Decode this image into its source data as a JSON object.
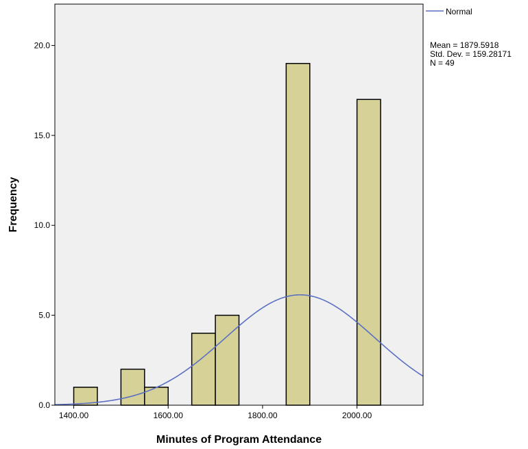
{
  "chart_data": {
    "type": "bar",
    "subtype": "histogram",
    "xlabel": "Minutes of Program Attendance",
    "ylabel": "Frequency",
    "xlim": [
      1360,
      2140
    ],
    "ylim": [
      0,
      22.3
    ],
    "x_ticks": [
      1400,
      1600,
      1800,
      2000
    ],
    "x_tick_labels": [
      "1400.00",
      "1600.00",
      "1800.00",
      "2000.00"
    ],
    "y_ticks": [
      0,
      5,
      10,
      15,
      20
    ],
    "y_tick_labels": [
      "0.0",
      "5.0",
      "10.0",
      "15.0",
      "20.0"
    ],
    "bins": [
      {
        "start": 1400,
        "end": 1450,
        "count": 1
      },
      {
        "start": 1500,
        "end": 1550,
        "count": 2
      },
      {
        "start": 1550,
        "end": 1600,
        "count": 1
      },
      {
        "start": 1650,
        "end": 1700,
        "count": 4
      },
      {
        "start": 1700,
        "end": 1750,
        "count": 5
      },
      {
        "start": 1850,
        "end": 1900,
        "count": 19
      },
      {
        "start": 2000,
        "end": 2050,
        "count": 17
      }
    ],
    "normal_curve": {
      "name": "Normal",
      "mean": 1879.5918,
      "std": 159.28171,
      "n": 49,
      "bin_width": 50
    },
    "stats_lines": [
      "Mean = 1879.5918",
      "Std. Dev. = 159.28171",
      "N = 49"
    ],
    "legend_label": "Normal",
    "legend_position": "top-right",
    "grid": false,
    "colors": {
      "plot_background": "#f0f0f0",
      "bar_fill": "#d6d196",
      "bar_stroke": "#000000",
      "curve": "#5a6fc4"
    }
  }
}
